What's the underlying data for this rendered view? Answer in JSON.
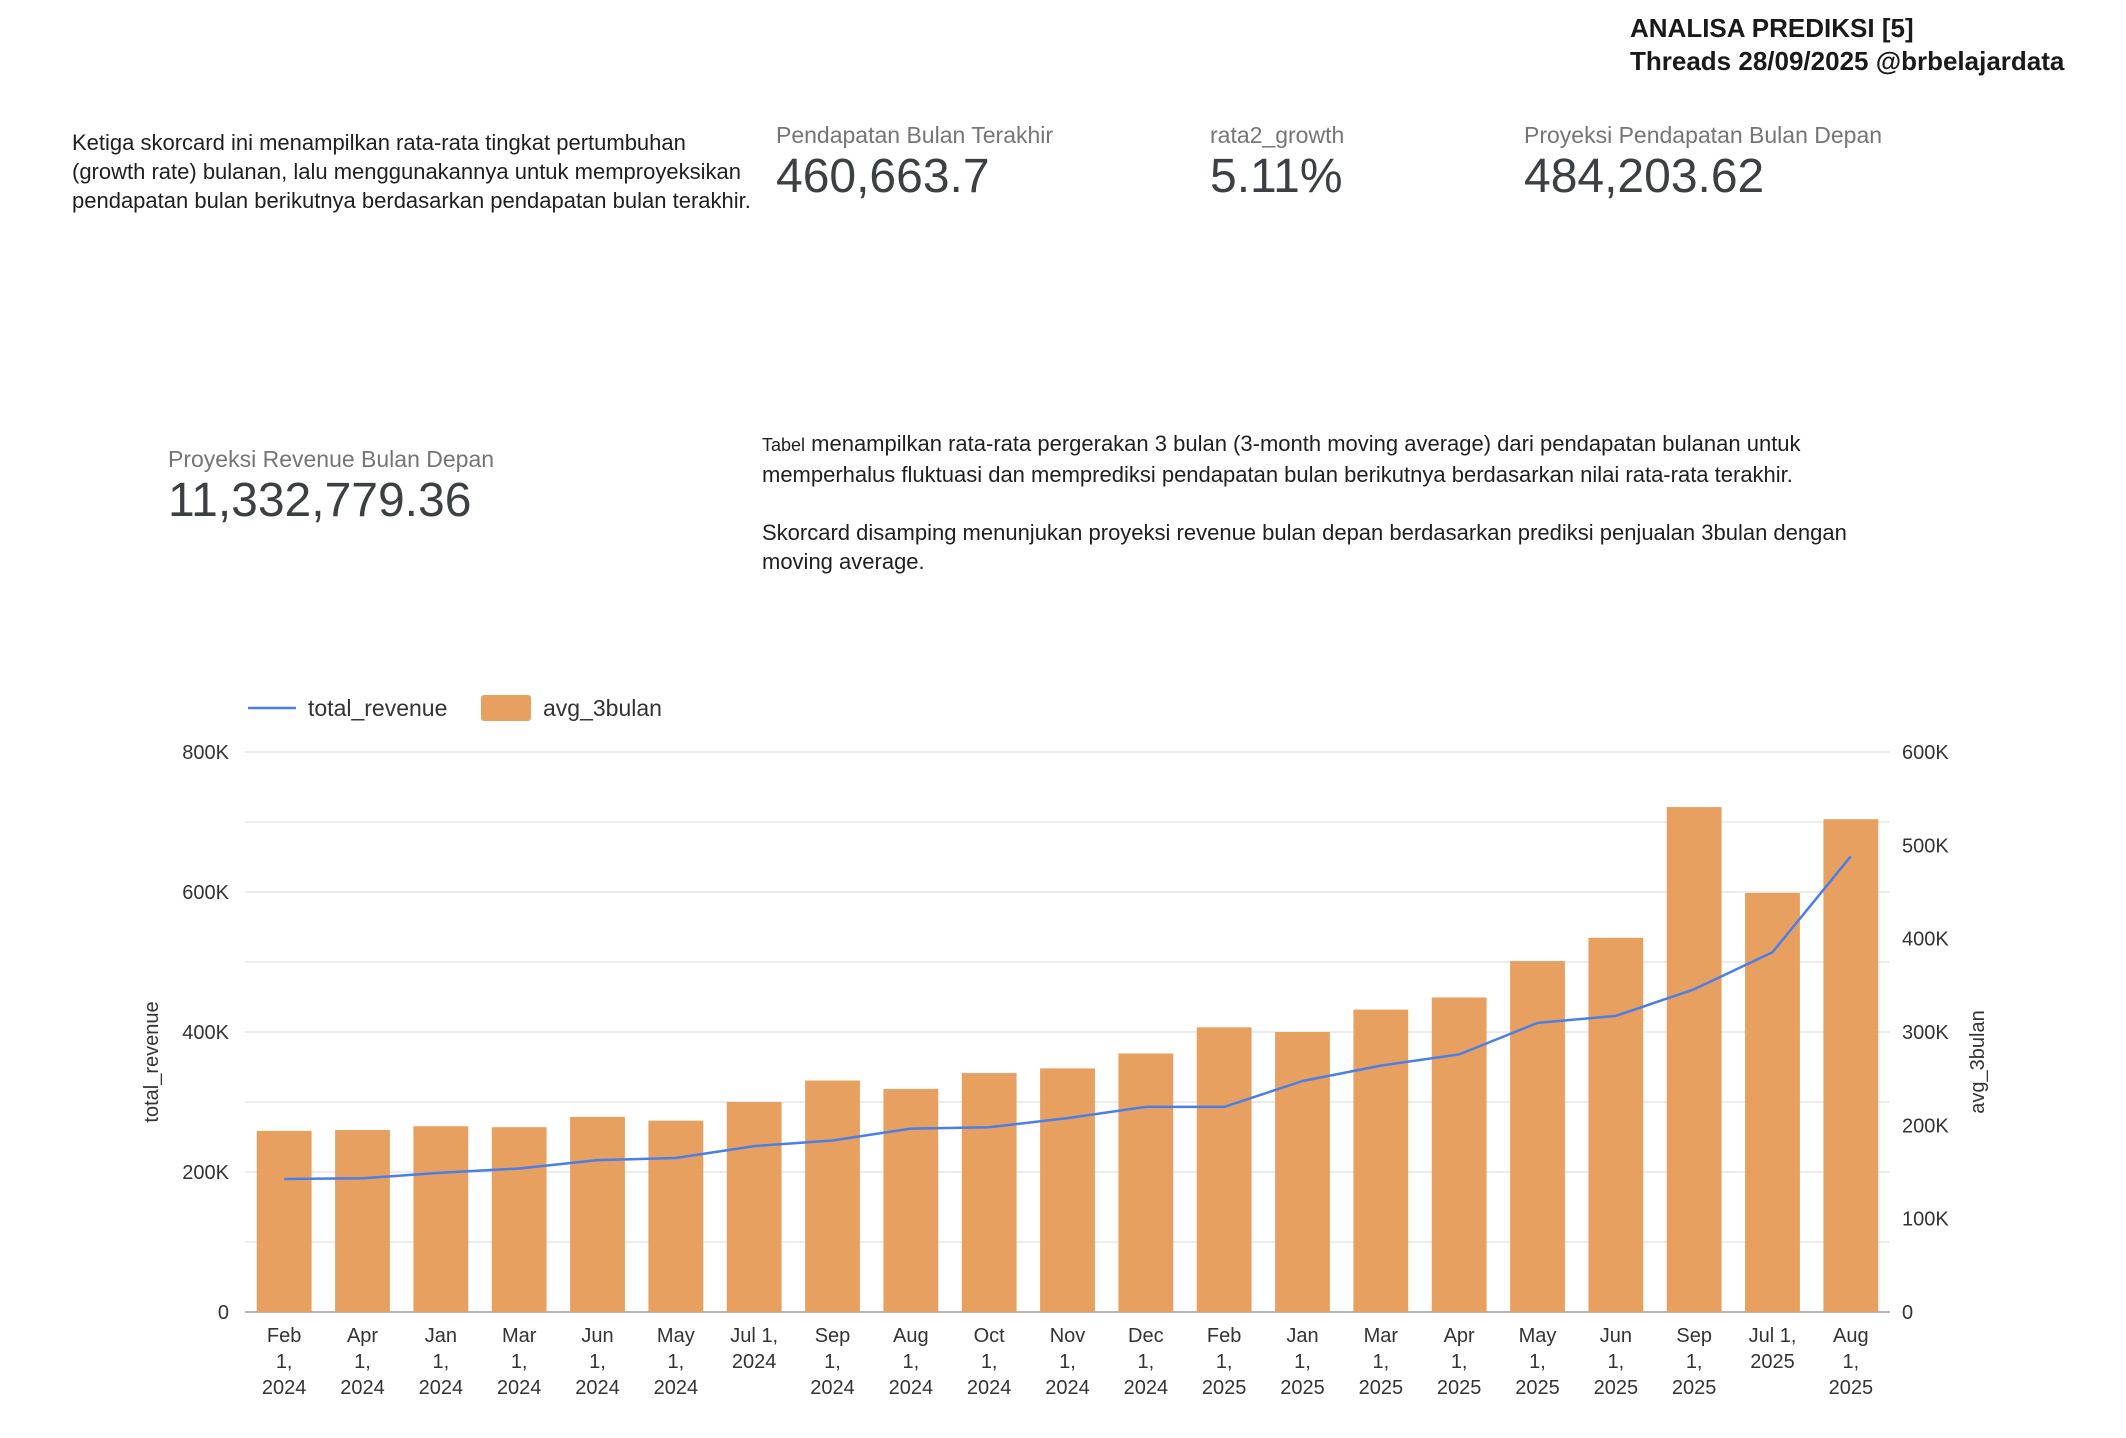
{
  "header": {
    "title": "ANALISA PREDIKSI [5]",
    "subtitle": "Threads 28/09/2025 @brbelajardata"
  },
  "intro_text": "Ketiga skorcard ini menampilkan rata-rata tingkat pertumbuhan (growth rate) bulanan, lalu menggunakannya untuk memproyeksikan pendapatan bulan berikutnya berdasarkan pendapatan bulan terakhir.",
  "scorecards": [
    {
      "label": "Pendapatan Bulan Terakhir",
      "value": "460,663.7"
    },
    {
      "label": "rata2_growth",
      "value": "5.11%"
    },
    {
      "label": "Proyeksi Pendapatan Bulan Depan",
      "value": "484,203.62"
    },
    {
      "label": "Proyeksi Revenue Bulan Depan",
      "value": "11,332,779.36"
    }
  ],
  "table_text": {
    "lead": "Tabel",
    "rest": " menampilkan rata-rata pergerakan 3 bulan (3-month moving average) dari pendapatan bulanan untuk memperhalus fluktuasi dan memprediksi pendapatan bulan berikutnya berdasarkan nilai rata-rata terakhir.",
    "second": "Skorcard disamping menunjukan proyeksi revenue bulan depan berdasarkan prediksi penjualan 3bulan dengan moving average."
  },
  "colors": {
    "bar": "#e8a060",
    "line": "#4a7ee8",
    "grid": "#d9d9d9"
  },
  "chart_data": {
    "type": "bar",
    "categories": [
      [
        "Feb",
        "1,",
        "2024"
      ],
      [
        "Apr",
        "1,",
        "2024"
      ],
      [
        "Jan",
        "1,",
        "2024"
      ],
      [
        "Mar",
        "1,",
        "2024"
      ],
      [
        "Jun",
        "1,",
        "2024"
      ],
      [
        "May",
        "1,",
        "2024"
      ],
      [
        "Jul 1,",
        "2024"
      ],
      [
        "Sep",
        "1,",
        "2024"
      ],
      [
        "Aug",
        "1,",
        "2024"
      ],
      [
        "Oct",
        "1,",
        "2024"
      ],
      [
        "Nov",
        "1,",
        "2024"
      ],
      [
        "Dec",
        "1,",
        "2024"
      ],
      [
        "Feb",
        "1,",
        "2025"
      ],
      [
        "Jan",
        "1,",
        "2025"
      ],
      [
        "Mar",
        "1,",
        "2025"
      ],
      [
        "Apr",
        "1,",
        "2025"
      ],
      [
        "May",
        "1,",
        "2025"
      ],
      [
        "Jun",
        "1,",
        "2025"
      ],
      [
        "Sep",
        "1,",
        "2025"
      ],
      [
        "Jul 1,",
        "2025"
      ],
      [
        "Aug",
        "1,",
        "2025"
      ]
    ],
    "series": [
      {
        "name": "total_revenue",
        "type": "line",
        "axis": "left",
        "values": [
          190000,
          191000,
          199000,
          205000,
          217000,
          220000,
          237000,
          245000,
          262000,
          264000,
          277000,
          293000,
          293000,
          330000,
          352000,
          368000,
          413000,
          423000,
          461000,
          514000,
          651000
        ]
      },
      {
        "name": "avg_3bulan",
        "type": "bar",
        "axis": "right",
        "values": [
          194000,
          195000,
          199000,
          198000,
          209000,
          205000,
          225000,
          248000,
          239000,
          256000,
          261000,
          277000,
          305000,
          300000,
          324000,
          337000,
          376000,
          401000,
          541000,
          449000,
          528000
        ]
      }
    ],
    "left_axis": {
      "label": "total_revenue",
      "ylim": [
        0,
        800000
      ],
      "ticks": [
        "0",
        "200K",
        "400K",
        "600K",
        "800K"
      ]
    },
    "right_axis": {
      "label": "avg_3bulan",
      "ylim": [
        0,
        600000
      ],
      "ticks": [
        "0",
        "100K",
        "200K",
        "300K",
        "400K",
        "500K",
        "600K"
      ]
    },
    "grid": true,
    "legend": "top-left"
  }
}
